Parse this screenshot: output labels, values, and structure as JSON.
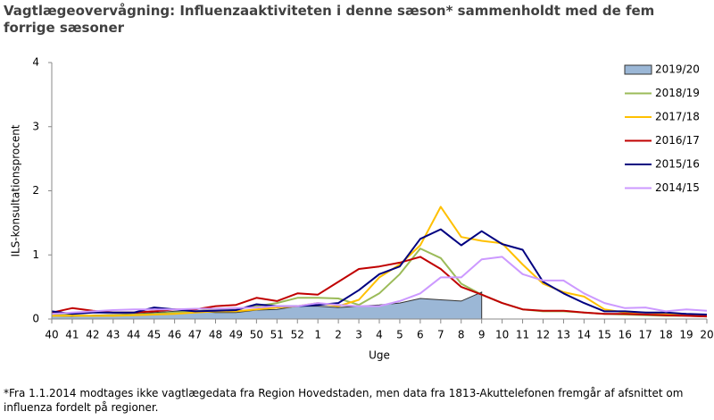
{
  "chart_data": {
    "type": "line",
    "title": "Vagtlægeovervågning: Influenzaaktiviteten i denne sæson* sammenholdt med de fem forrige sæsoner",
    "xlabel": "Uge",
    "ylabel": "ILS-konsultationsprocent",
    "footnote": "*Fra 1.1.2014 modtages ikke vagtlægedata fra Region Hovedstaden, men data fra 1813-Akuttelefonen fremgår af afsnittet om influenza fordelt på regioner.",
    "categories": [
      "40",
      "41",
      "42",
      "43",
      "44",
      "45",
      "46",
      "47",
      "48",
      "49",
      "50",
      "51",
      "52",
      "1",
      "2",
      "3",
      "4",
      "5",
      "6",
      "7",
      "8",
      "9",
      "10",
      "11",
      "12",
      "13",
      "14",
      "15",
      "16",
      "17",
      "18",
      "19",
      "20"
    ],
    "ylim": [
      0,
      4
    ],
    "yticks": [
      0,
      1,
      2,
      3,
      4
    ],
    "grid": false,
    "legend": "upper right",
    "series": [
      {
        "name": "2019/20",
        "color": "#9bb7d6",
        "kind": "area",
        "values": [
          0.05,
          0.04,
          0.06,
          0.07,
          0.08,
          0.1,
          0.12,
          0.12,
          0.1,
          0.1,
          0.14,
          0.15,
          0.2,
          0.2,
          0.18,
          0.2,
          0.22,
          0.25,
          0.32,
          0.3,
          0.28,
          0.42,
          null,
          null,
          null,
          null,
          null,
          null,
          null,
          null,
          null,
          null,
          null
        ]
      },
      {
        "name": "2018/19",
        "color": "#9bbb59",
        "values": [
          0.08,
          0.06,
          0.05,
          0.06,
          0.07,
          0.08,
          0.1,
          0.12,
          0.15,
          0.15,
          0.2,
          0.25,
          0.33,
          0.33,
          0.32,
          0.22,
          0.4,
          0.7,
          1.1,
          0.95,
          0.55,
          0.38,
          0.25,
          0.15,
          0.12,
          0.12,
          0.1,
          0.08,
          0.07,
          0.06,
          0.05,
          0.05,
          0.04
        ]
      },
      {
        "name": "2017/18",
        "color": "#ffc000",
        "values": [
          0.05,
          0.05,
          0.05,
          0.05,
          0.06,
          0.07,
          0.08,
          0.1,
          0.12,
          0.12,
          0.15,
          0.18,
          0.2,
          0.25,
          0.2,
          0.3,
          0.65,
          0.85,
          1.15,
          1.75,
          1.28,
          1.22,
          1.18,
          0.85,
          0.55,
          0.42,
          0.35,
          0.15,
          0.1,
          0.1,
          0.08,
          0.07,
          0.06
        ]
      },
      {
        "name": "2016/17",
        "color": "#c00000",
        "values": [
          0.1,
          0.17,
          0.13,
          0.1,
          0.1,
          0.12,
          0.15,
          0.15,
          0.2,
          0.22,
          0.33,
          0.28,
          0.4,
          0.38,
          0.58,
          0.78,
          0.82,
          0.88,
          0.97,
          0.78,
          0.5,
          0.38,
          0.25,
          0.15,
          0.13,
          0.13,
          0.1,
          0.08,
          0.08,
          0.07,
          0.06,
          0.05,
          0.04
        ]
      },
      {
        "name": "2015/16",
        "color": "#000080",
        "values": [
          0.12,
          0.08,
          0.1,
          0.1,
          0.1,
          0.18,
          0.15,
          0.12,
          0.13,
          0.14,
          0.23,
          0.2,
          0.2,
          0.22,
          0.25,
          0.45,
          0.7,
          0.82,
          1.25,
          1.4,
          1.15,
          1.37,
          1.17,
          1.08,
          0.58,
          0.4,
          0.25,
          0.12,
          0.12,
          0.1,
          0.1,
          0.08,
          0.07
        ]
      },
      {
        "name": "2014/15",
        "color": "#cc99ff",
        "values": [
          0.08,
          0.1,
          0.12,
          0.14,
          0.15,
          0.15,
          0.15,
          0.16,
          0.16,
          0.17,
          0.18,
          0.2,
          0.2,
          0.25,
          0.22,
          0.2,
          0.2,
          0.28,
          0.4,
          0.65,
          0.65,
          0.93,
          0.97,
          0.7,
          0.6,
          0.6,
          0.4,
          0.25,
          0.17,
          0.18,
          0.12,
          0.15,
          0.13
        ]
      }
    ]
  }
}
